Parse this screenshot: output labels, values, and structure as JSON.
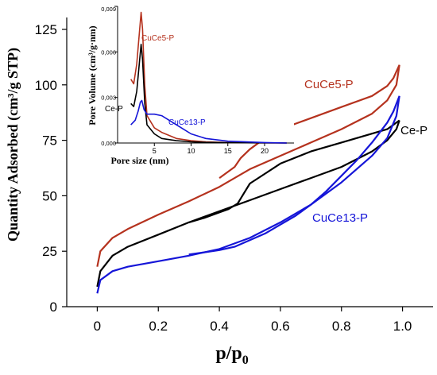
{
  "chart_data": [
    {
      "type": "line",
      "xlabel": "p/p",
      "xlabel_sub": "0",
      "ylabel": "Quantity Adsorbed (cm³/g STP)",
      "xlim": [
        -0.1,
        1.1
      ],
      "ylim": [
        0,
        130
      ],
      "x_ticks": [
        0,
        0.2,
        0.4,
        0.6,
        0.8,
        1.0
      ],
      "x_tick_labels": [
        "0",
        "0.2",
        "0.4",
        "0.6",
        "0.8",
        "1.0"
      ],
      "y_ticks": [
        0,
        25,
        50,
        75,
        100,
        125
      ],
      "y_tick_labels": [
        "0",
        "25",
        "50",
        "75",
        "100",
        "125"
      ],
      "grid": false,
      "series": [
        {
          "name": "CuCe5-P",
          "color": "#b5321e",
          "adsorption": [
            [
              0.0,
              18
            ],
            [
              0.01,
              25
            ],
            [
              0.05,
              31
            ],
            [
              0.1,
              35
            ],
            [
              0.2,
              41.5
            ],
            [
              0.3,
              47.5
            ],
            [
              0.4,
              54
            ],
            [
              0.45,
              58
            ],
            [
              0.5,
              62
            ],
            [
              0.6,
              68
            ],
            [
              0.7,
              74
            ],
            [
              0.8,
              80
            ],
            [
              0.9,
              87
            ],
            [
              0.95,
              93
            ],
            [
              0.98,
              100
            ],
            [
              0.99,
              109
            ]
          ],
          "desorption": [
            [
              0.99,
              109
            ],
            [
              0.97,
              103
            ],
            [
              0.95,
              99.5
            ],
            [
              0.9,
              95
            ],
            [
              0.8,
              90
            ],
            [
              0.7,
              85
            ],
            [
              0.6,
              80
            ],
            [
              0.55,
              76
            ],
            [
              0.5,
              71
            ],
            [
              0.47,
              67
            ],
            [
              0.45,
              63
            ],
            [
              0.42,
              60
            ],
            [
              0.4,
              58
            ]
          ]
        },
        {
          "name": "Ce-P",
          "color": "#000000",
          "adsorption": [
            [
              0.0,
              9
            ],
            [
              0.01,
              16
            ],
            [
              0.05,
              23
            ],
            [
              0.1,
              27
            ],
            [
              0.2,
              32.5
            ],
            [
              0.3,
              38
            ],
            [
              0.4,
              43
            ],
            [
              0.5,
              48
            ],
            [
              0.6,
              53
            ],
            [
              0.7,
              58
            ],
            [
              0.8,
              63
            ],
            [
              0.9,
              70
            ],
            [
              0.95,
              75
            ],
            [
              0.98,
              80
            ],
            [
              0.99,
              84
            ]
          ],
          "desorption": [
            [
              0.99,
              84
            ],
            [
              0.97,
              82
            ],
            [
              0.95,
              80
            ],
            [
              0.9,
              78
            ],
            [
              0.8,
              74
            ],
            [
              0.7,
              70
            ],
            [
              0.6,
              64.5
            ],
            [
              0.55,
              60
            ],
            [
              0.5,
              55.5
            ],
            [
              0.48,
              51
            ],
            [
              0.46,
              46.5
            ],
            [
              0.43,
              44
            ],
            [
              0.4,
              42.5
            ],
            [
              0.35,
              40
            ],
            [
              0.3,
              38
            ]
          ]
        },
        {
          "name": "CuCe13-P",
          "color": "#1515d8",
          "adsorption": [
            [
              0.0,
              6
            ],
            [
              0.01,
              12
            ],
            [
              0.05,
              16
            ],
            [
              0.1,
              18
            ],
            [
              0.2,
              20.5
            ],
            [
              0.3,
              23
            ],
            [
              0.4,
              26
            ],
            [
              0.5,
              31
            ],
            [
              0.6,
              38
            ],
            [
              0.7,
              46
            ],
            [
              0.8,
              56
            ],
            [
              0.9,
              68
            ],
            [
              0.95,
              76
            ],
            [
              0.98,
              86
            ],
            [
              0.99,
              95
            ]
          ],
          "desorption": [
            [
              0.99,
              95
            ],
            [
              0.97,
              88
            ],
            [
              0.95,
              83
            ],
            [
              0.9,
              74
            ],
            [
              0.85,
              66
            ],
            [
              0.8,
              59
            ],
            [
              0.75,
              52
            ],
            [
              0.7,
              46
            ],
            [
              0.65,
              41
            ],
            [
              0.6,
              37
            ],
            [
              0.55,
              33
            ],
            [
              0.5,
              30
            ],
            [
              0.45,
              27
            ],
            [
              0.4,
              25.5
            ],
            [
              0.35,
              24.5
            ],
            [
              0.3,
              23.5
            ]
          ]
        }
      ]
    },
    {
      "type": "line",
      "xlabel": "Pore size (nm)",
      "ylabel": "Pore Volume (cm³/g·nm)",
      "xlim": [
        0,
        24
      ],
      "ylim": [
        0,
        0.009
      ],
      "x_ticks": [
        5,
        10,
        15,
        20
      ],
      "x_tick_labels": [
        "5",
        "10",
        "15",
        "20"
      ],
      "y_ticks": [
        0,
        0.003,
        0.006,
        0.009
      ],
      "y_tick_labels": [
        "0,000",
        "0,003",
        "0,006",
        "0,009"
      ],
      "grid": false,
      "series": [
        {
          "name": "CuCe5-P",
          "color": "#b5321e",
          "points": [
            [
              1.8,
              0.0042
            ],
            [
              2.2,
              0.0039
            ],
            [
              2.6,
              0.0052
            ],
            [
              3.0,
              0.0075
            ],
            [
              3.2,
              0.0086
            ],
            [
              3.4,
              0.0075
            ],
            [
              3.7,
              0.0038
            ],
            [
              4.0,
              0.0018
            ],
            [
              5,
              0.001
            ],
            [
              6,
              0.0007
            ],
            [
              8,
              0.0003
            ],
            [
              10,
              0.00015
            ],
            [
              12,
              8e-05
            ],
            [
              15,
              3e-05
            ],
            [
              20,
              1e-05
            ],
            [
              23,
              0.0
            ]
          ]
        },
        {
          "name": "Ce-P",
          "color": "#000000",
          "points": [
            [
              1.8,
              0.0026
            ],
            [
              2.2,
              0.0024
            ],
            [
              2.6,
              0.0034
            ],
            [
              3.0,
              0.0055
            ],
            [
              3.2,
              0.0065
            ],
            [
              3.4,
              0.0055
            ],
            [
              3.7,
              0.0026
            ],
            [
              4.0,
              0.0012
            ],
            [
              5,
              0.0006
            ],
            [
              6,
              0.0003
            ],
            [
              8,
              0.00015
            ],
            [
              10,
              8e-05
            ],
            [
              12,
              4e-05
            ],
            [
              15,
              2e-05
            ],
            [
              20,
              1e-05
            ],
            [
              23,
              0.0
            ]
          ]
        },
        {
          "name": "CuCe13-P",
          "color": "#1515d8",
          "points": [
            [
              1.8,
              0.0012
            ],
            [
              2.4,
              0.0015
            ],
            [
              2.8,
              0.0021
            ],
            [
              3.1,
              0.0027
            ],
            [
              3.3,
              0.0028
            ],
            [
              3.6,
              0.0022
            ],
            [
              4.0,
              0.0019
            ],
            [
              5,
              0.0019
            ],
            [
              6,
              0.0018
            ],
            [
              7,
              0.0015
            ],
            [
              8,
              0.0012
            ],
            [
              9,
              0.0009
            ],
            [
              10,
              0.0006
            ],
            [
              12,
              0.0003
            ],
            [
              15,
              0.00012
            ],
            [
              20,
              3e-05
            ],
            [
              23,
              0.0
            ]
          ]
        }
      ]
    }
  ]
}
